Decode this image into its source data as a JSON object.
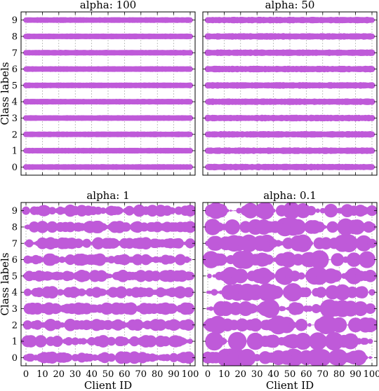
{
  "chart_data": [
    {
      "type": "scatter",
      "title": "alpha: 100",
      "xlabel": "",
      "ylabel": "Class labels",
      "xlim": [
        -3,
        103
      ],
      "ylim": [
        -0.5,
        9.5
      ],
      "xticks": [
        0,
        10,
        20,
        30,
        40,
        50,
        60,
        70,
        80,
        90,
        100
      ],
      "yticks": [
        0,
        1,
        2,
        3,
        4,
        5,
        6,
        7,
        8,
        9
      ],
      "show_xticklabels": false,
      "show_yticklabels": true,
      "grid": true,
      "marker_color": "#bf5ad9",
      "x": "client id 0 to 100 for every class",
      "size_variation": "very low (near-uniform distribution)",
      "alpha": 100
    },
    {
      "type": "scatter",
      "title": "alpha: 50",
      "xlabel": "",
      "ylabel": "",
      "xlim": [
        -3,
        103
      ],
      "ylim": [
        -0.5,
        9.5
      ],
      "xticks": [
        0,
        10,
        20,
        30,
        40,
        50,
        60,
        70,
        80,
        90,
        100
      ],
      "yticks": [
        0,
        1,
        2,
        3,
        4,
        5,
        6,
        7,
        8,
        9
      ],
      "show_xticklabels": false,
      "show_yticklabels": false,
      "grid": true,
      "marker_color": "#bf5ad9",
      "size_variation": "low",
      "alpha": 50
    },
    {
      "type": "scatter",
      "title": "alpha: 1",
      "xlabel": "Client ID",
      "ylabel": "Class labels",
      "xlim": [
        -3,
        103
      ],
      "ylim": [
        -0.5,
        9.5
      ],
      "xticks": [
        0,
        10,
        20,
        30,
        40,
        50,
        60,
        70,
        80,
        90,
        100
      ],
      "yticks": [
        0,
        1,
        2,
        3,
        4,
        5,
        6,
        7,
        8,
        9
      ],
      "show_xticklabels": true,
      "show_yticklabels": true,
      "grid": true,
      "marker_color": "#bf5ad9",
      "size_variation": "moderate",
      "alpha": 1
    },
    {
      "type": "scatter",
      "title": "alpha: 0.1",
      "xlabel": "Client ID",
      "ylabel": "",
      "xlim": [
        -3,
        103
      ],
      "ylim": [
        -0.5,
        9.5
      ],
      "xticks": [
        0,
        10,
        20,
        30,
        40,
        50,
        60,
        70,
        80,
        90,
        100
      ],
      "yticks": [
        0,
        1,
        2,
        3,
        4,
        5,
        6,
        7,
        8,
        9
      ],
      "show_xticklabels": true,
      "show_yticklabels": false,
      "grid": true,
      "marker_color": "#bf5ad9",
      "size_variation": "high (sparse, a few large markers per class)",
      "alpha": 0.1
    }
  ]
}
